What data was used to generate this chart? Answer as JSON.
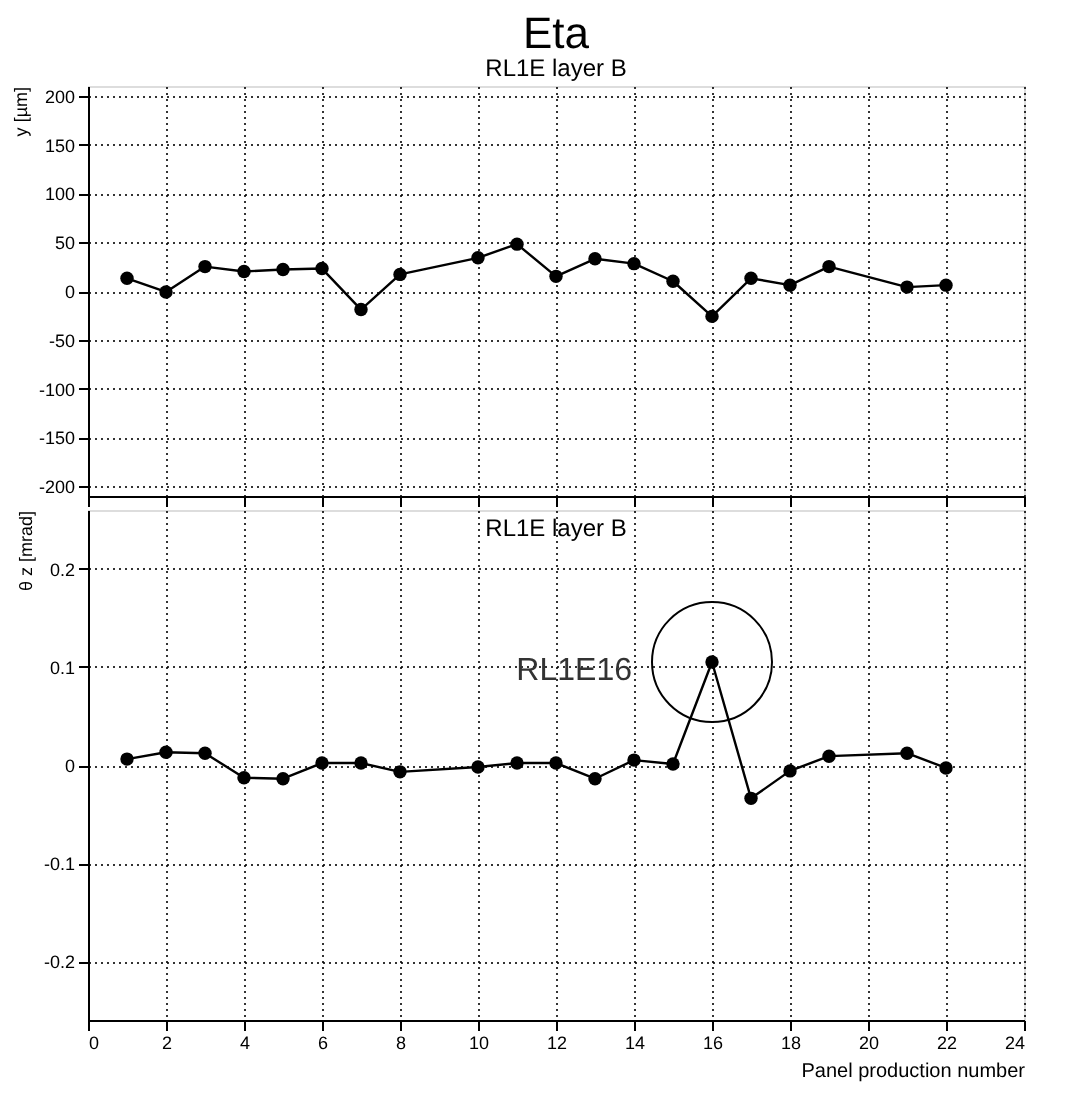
{
  "chart_data": [
    {
      "type": "line",
      "title": "Eta",
      "subtitle": "RL1E layer B",
      "ylabel": "y [µm]",
      "x": [
        1,
        2,
        3,
        4,
        5,
        6,
        7,
        8,
        10,
        11,
        12,
        13,
        14,
        15,
        16,
        17,
        18,
        19,
        21,
        22
      ],
      "series": [
        {
          "color": "#000000",
          "values": [
            13,
            -1,
            25,
            20,
            22,
            23,
            -19,
            17,
            34,
            48,
            15,
            33,
            28,
            10,
            -26,
            13,
            6,
            25,
            4,
            6
          ]
        }
      ],
      "xlim": [
        0,
        24
      ],
      "xticks": [
        0,
        2,
        4,
        6,
        8,
        10,
        12,
        14,
        16,
        18,
        20,
        22,
        24
      ],
      "ylim": [
        -210,
        210
      ],
      "yticks": [
        -200,
        -150,
        -100,
        -50,
        0,
        50,
        100,
        150,
        200
      ],
      "grid": true,
      "marker": "circle",
      "line_style": "solid",
      "tick_labels": "y",
      "legend": false
    },
    {
      "type": "line",
      "title": "RL1E layer B",
      "xlabel": "Panel production number",
      "ylabel": "θ z [mrad]",
      "x": [
        1,
        2,
        3,
        4,
        5,
        6,
        7,
        8,
        10,
        11,
        12,
        13,
        14,
        15,
        16,
        17,
        18,
        19,
        21,
        22
      ],
      "series": [
        {
          "color": "#000000",
          "values": [
            0.006,
            0.013,
            0.012,
            -0.013,
            -0.014,
            0.002,
            0.002,
            -0.007,
            -0.002,
            0.002,
            0.002,
            -0.014,
            0.005,
            0.001,
            0.105,
            -0.034,
            -0.006,
            0.009,
            0.012,
            -0.003
          ]
        }
      ],
      "xlim": [
        0,
        24
      ],
      "xticks": [
        0,
        2,
        4,
        6,
        8,
        10,
        12,
        14,
        16,
        18,
        20,
        22,
        24
      ],
      "ylim": [
        -0.26,
        0.26
      ],
      "yticks": [
        -0.2,
        -0.1,
        0,
        0.1,
        0.2
      ],
      "grid": true,
      "marker": "circle",
      "line_style": "solid",
      "legend": false,
      "annotations": [
        {
          "text": "RL1E16",
          "x": 16,
          "y": 0.105
        }
      ]
    }
  ]
}
